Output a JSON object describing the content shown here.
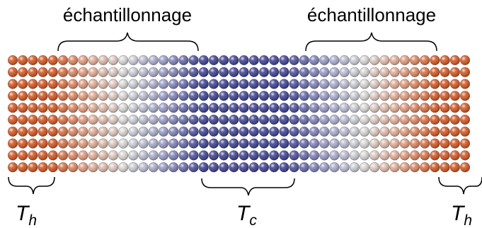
{
  "labels": {
    "sampling_left": "échantillonnage",
    "sampling_right": "échantillonnage",
    "hot_left": {
      "symbol": "T",
      "subscript": "h"
    },
    "cold": {
      "symbol": "T",
      "subscript": "c"
    },
    "hot_right": {
      "symbol": "T",
      "subscript": "h"
    }
  },
  "lattice": {
    "columns": 46,
    "rows": 10,
    "zones": [
      {
        "name": "hot-reservoir-left",
        "from_col": 0,
        "to_col": 4
      },
      {
        "name": "sampling-left",
        "from_col": 5,
        "to_col": 18
      },
      {
        "name": "cold-reservoir",
        "from_col": 19,
        "to_col": 27
      },
      {
        "name": "sampling-right",
        "from_col": 28,
        "to_col": 41
      },
      {
        "name": "hot-reservoir-right",
        "from_col": 42,
        "to_col": 45
      }
    ]
  },
  "colors": {
    "hot": "#d2541e",
    "warm_mid": "#e2a48a",
    "neutral": "#d9d9d9",
    "cool_mid": "#9a9cc6",
    "cold": "#3b3f8f"
  }
}
